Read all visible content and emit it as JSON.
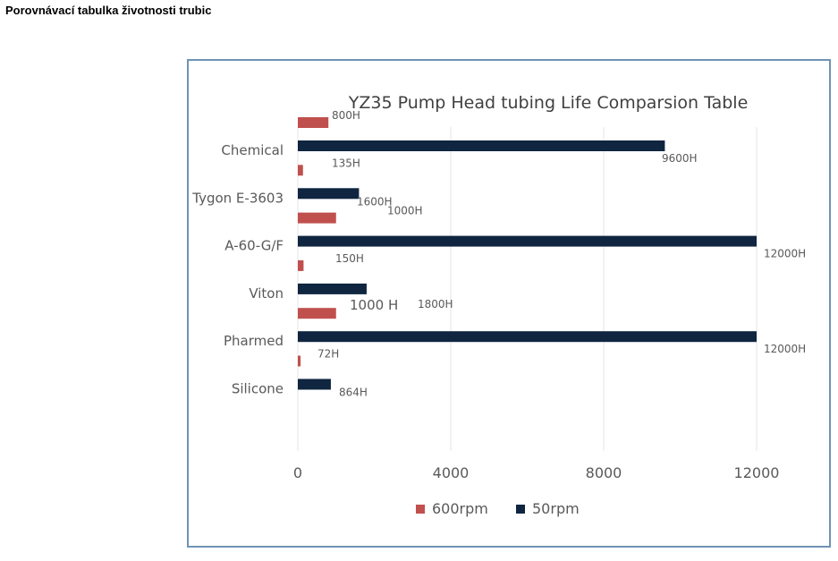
{
  "page": {
    "heading": "Porovnávací tabulka životnosti trubic"
  },
  "colors": {
    "series_600": "#c0504d",
    "series_50": "#0f2540",
    "frame": "#6f93b5"
  },
  "chart_data": {
    "type": "bar",
    "orientation": "horizontal",
    "title": "YZ35 Pump Head tubing Life Comparsion Table",
    "categories": [
      "Chemical",
      "Tygon E-3603",
      "A-60-G/F",
      "Viton",
      "Pharmed",
      "Silicone"
    ],
    "series": [
      {
        "name": "600rpm",
        "values": [
          800,
          135,
          1000,
          150,
          1000,
          72
        ],
        "labels": [
          "800H",
          "135H",
          "1000H",
          "150H",
          "1000 H",
          "72H"
        ]
      },
      {
        "name": "50rpm",
        "values": [
          9600,
          1600,
          12000,
          1800,
          12000,
          864
        ],
        "labels": [
          "9600H",
          "1600H",
          "12000H",
          "1800H",
          "12000H",
          "864H"
        ]
      }
    ],
    "xlim": [
      0,
      12000
    ],
    "xticks": [
      "0",
      "4000",
      "8000",
      "12000"
    ],
    "grid": true,
    "legend": "bottom"
  }
}
